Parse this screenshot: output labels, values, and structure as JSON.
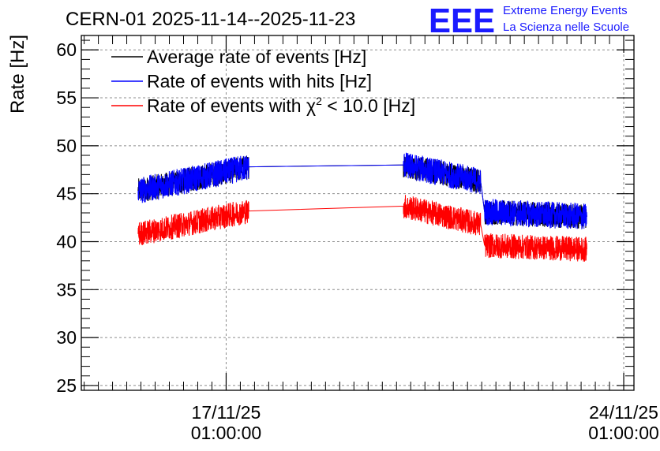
{
  "header": {
    "title": "CERN-01 2025-11-14--2025-11-23",
    "logo_text": "EEE",
    "org_line1": "Extreme Energy Events",
    "org_line2": "La Scienza nelle Scuole",
    "brand_color": "#1a1aff"
  },
  "chart_data": {
    "type": "line",
    "title": "CERN-01 2025-11-14--2025-11-23",
    "xlabel": "",
    "ylabel": "Rate [Hz]",
    "ylim": [
      24.5,
      61.5
    ],
    "yticks": [
      25,
      30,
      35,
      40,
      45,
      50,
      55,
      60
    ],
    "ytick_labels": [
      "25",
      "30",
      "35",
      "40",
      "45",
      "50",
      "55",
      "60"
    ],
    "xlim_days": [
      -2.55,
      7.18
    ],
    "xticks": [
      {
        "day": 0,
        "date": "17/11/25",
        "time": "01:00:00"
      },
      {
        "day": 7,
        "date": "24/11/25",
        "time": "01:00:00"
      }
    ],
    "grid": true,
    "legend_position": "top-left",
    "segments_days": [
      [
        -1.55,
        0.4
      ],
      [
        3.12,
        4.48
      ],
      [
        4.55,
        6.35
      ]
    ],
    "series": [
      {
        "name": "Average rate of events [Hz]",
        "color": "#000000",
        "levels": [
          [
            45.3,
            47.8
          ],
          [
            48.0,
            46.3
          ],
          [
            43.1,
            42.6
          ]
        ],
        "noise": 1.3
      },
      {
        "name": "Rate of events with hits [Hz]",
        "color": "#0000ff",
        "levels": [
          [
            45.3,
            47.8
          ],
          [
            48.0,
            46.3
          ],
          [
            43.1,
            42.6
          ]
        ],
        "noise": 1.4
      },
      {
        "name": "Rate of events with χ² < 10.0 [Hz]",
        "color": "#ff0000",
        "levels": [
          [
            40.8,
            43.2
          ],
          [
            43.7,
            41.8
          ],
          [
            39.6,
            39.2
          ]
        ],
        "noise": 1.3
      }
    ],
    "legend": {
      "entry1": "Average rate of events [Hz]",
      "entry2": "Rate of events with hits [Hz]",
      "entry3_prefix": "Rate of events with ",
      "entry3_symbol": "χ",
      "entry3_exp": "2",
      "entry3_suffix": " < 10.0 [Hz]"
    }
  }
}
